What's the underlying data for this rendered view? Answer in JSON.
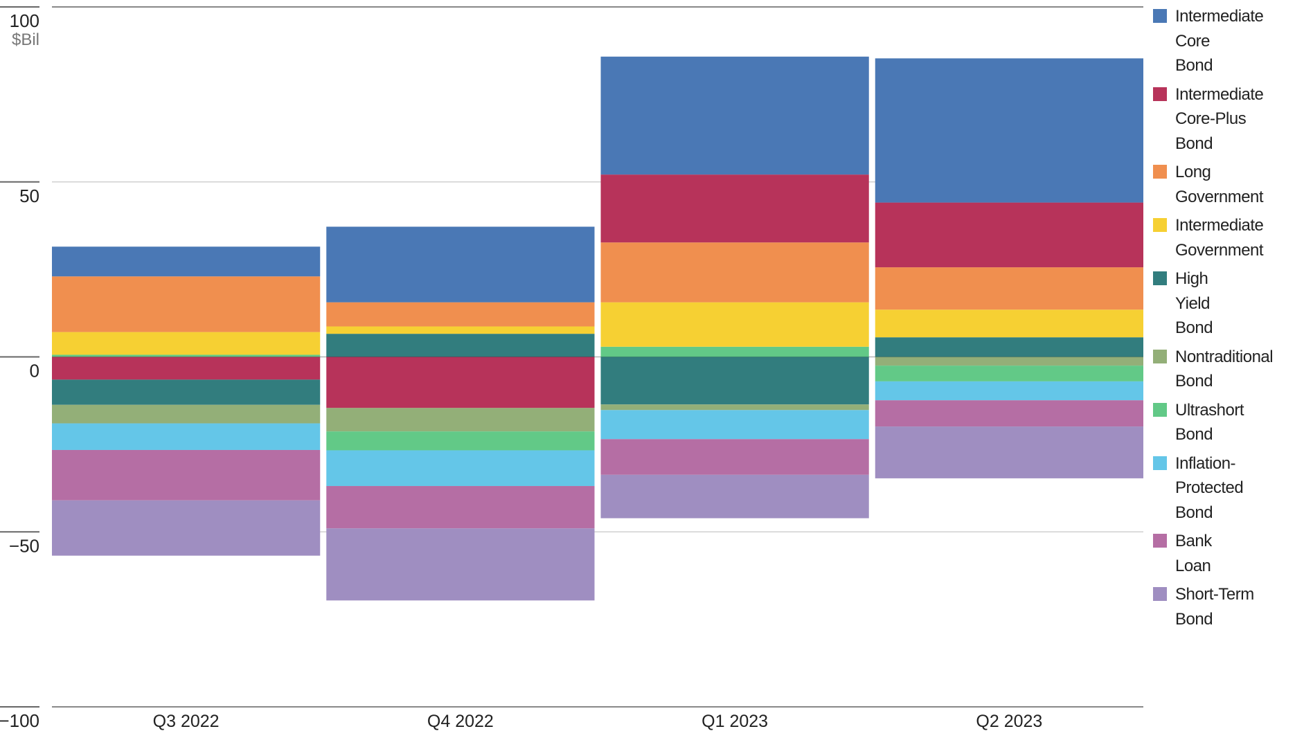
{
  "chart_data": {
    "type": "bar",
    "stacked": true,
    "title": "",
    "xlabel": "",
    "ylabel": "$Bil",
    "ylim": [
      -100,
      100
    ],
    "yticks": [
      100,
      50,
      0,
      -50,
      -100
    ],
    "ytick_labels": [
      "100",
      "50",
      "0",
      "−50",
      "−100"
    ],
    "grid": true,
    "legend_position": "right",
    "categories": [
      "Q3 2022",
      "Q4 2022",
      "Q1 2023",
      "Q2 2023"
    ],
    "series": [
      {
        "name": "Intermediate Core Bond",
        "color": "#4a78b5",
        "values": [
          8.5,
          21.6,
          33.7,
          41.2
        ]
      },
      {
        "name": "Intermediate Core-Plus Bond",
        "color": "#b7335a",
        "values": [
          -6.5,
          -14.6,
          19.4,
          18.5
        ]
      },
      {
        "name": "Long Government",
        "color": "#f08f4f",
        "values": [
          15.9,
          6.9,
          17.1,
          12.1
        ]
      },
      {
        "name": "Intermediate Government",
        "color": "#f6d033",
        "values": [
          6.5,
          2.1,
          12.7,
          7.9
        ]
      },
      {
        "name": "High Yield Bond",
        "color": "#327d7e",
        "values": [
          -7.2,
          6.6,
          -13.6,
          5.6
        ]
      },
      {
        "name": "Nontraditional Bond",
        "color": "#93af78",
        "values": [
          -5.3,
          -6.7,
          -1.6,
          -2.5
        ]
      },
      {
        "name": "Ultrashort Bond",
        "color": "#62c987",
        "values": [
          0.6,
          -5.4,
          2.9,
          -4.5
        ]
      },
      {
        "name": "Inflation-Protected Bond",
        "color": "#64c6e8",
        "values": [
          -7.6,
          -10.2,
          -8.3,
          -5.4
        ]
      },
      {
        "name": "Bank Loan",
        "color": "#b56ea4",
        "values": [
          -14.4,
          -12.1,
          -10.2,
          -7.5
        ]
      },
      {
        "name": "Short-Term Bond",
        "color": "#9f8ec1",
        "values": [
          -15.8,
          -20.6,
          -12.4,
          -14.8
        ]
      }
    ]
  }
}
